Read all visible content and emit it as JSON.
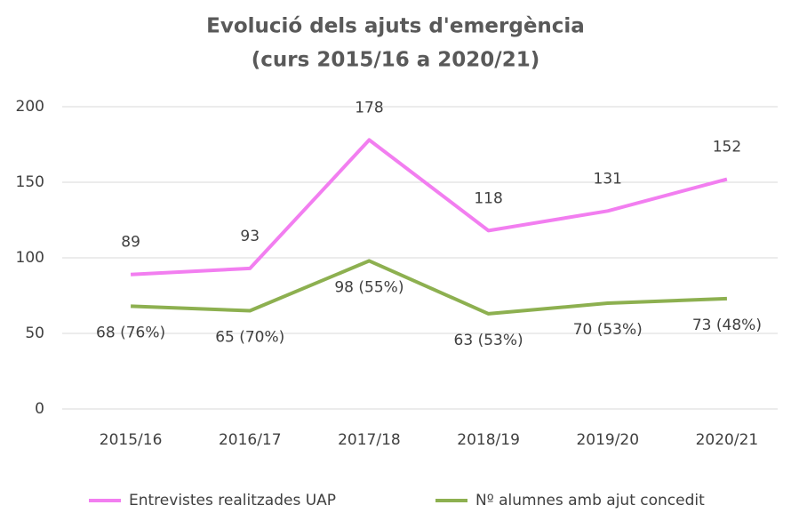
{
  "chart_data": {
    "type": "line",
    "title": "Evolució dels ajuts d'emergència",
    "subtitle": "(curs 2015/16 a 2020/21)",
    "categories": [
      "2015/16",
      "2016/17",
      "2017/18",
      "2018/19",
      "2019/20",
      "2020/21"
    ],
    "series": [
      {
        "name": "Entrevistes realitzades UAP",
        "color": "#f27ef0",
        "values": [
          89,
          93,
          178,
          118,
          131,
          152
        ]
      },
      {
        "name": "Nº alumnes amb ajut concedit",
        "color": "#8db050",
        "values": [
          68,
          65,
          98,
          63,
          70,
          73
        ],
        "value_labels": [
          "68 (76%)",
          "65 (70%)",
          "98 (55%)",
          "63 (53%)",
          "70 (53%)",
          "73 (48%)"
        ]
      }
    ],
    "ylim": [
      0,
      200
    ],
    "yticks": [
      0,
      50,
      100,
      150,
      200
    ],
    "grid": true,
    "legend": "bottom"
  }
}
